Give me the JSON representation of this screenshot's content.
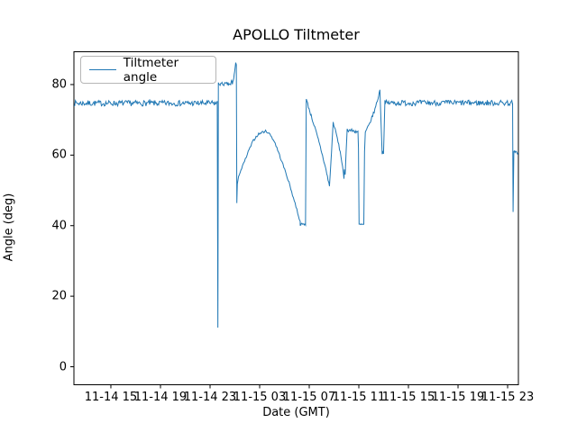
{
  "figure": {
    "background": "#ffffff"
  },
  "chart_data": {
    "type": "line",
    "title": "APOLLO Tiltmeter",
    "xlabel": "Date (GMT)",
    "ylabel": "Angle (deg)",
    "legend_label": "Tiltmeter angle",
    "legend_position": "upper left",
    "line_color": "#1f77b4",
    "grid": "off",
    "xlim_hours": [
      12.02,
      47.87
    ],
    "ylim_deg": [
      -5.1,
      89.3
    ],
    "yticks_deg": [
      0,
      20,
      40,
      60,
      80
    ],
    "xticks": [
      {
        "hour": 15,
        "label": "11-14 15"
      },
      {
        "hour": 19,
        "label": "11-14 19"
      },
      {
        "hour": 23,
        "label": "11-14 23"
      },
      {
        "hour": 27,
        "label": "11-15 03"
      },
      {
        "hour": 31,
        "label": "11-15 07"
      },
      {
        "hour": 35,
        "label": "11-15 11"
      },
      {
        "hour": 39,
        "label": "11-15 15"
      },
      {
        "hour": 43,
        "label": "11-15 19"
      },
      {
        "hour": 47,
        "label": "11-15 23"
      }
    ],
    "x_unit_note": "hours after 11-14 00:00 GMT",
    "noise_seed": 7,
    "series": [
      {
        "name": "Tiltmeter angle",
        "segments": [
          {
            "noise": 0.8,
            "dt": 0.06,
            "points": [
              [
                12.02,
                74.7
              ],
              [
                23.52,
                74.7
              ]
            ]
          },
          {
            "noise": 0,
            "dt": 0,
            "points": [
              [
                23.52,
                74.9
              ],
              [
                23.58,
                75.3
              ],
              [
                23.63,
                11.1
              ],
              [
                23.67,
                79.8
              ]
            ]
          },
          {
            "noise": 0.5,
            "dt": 0.05,
            "points": [
              [
                23.67,
                80.2
              ],
              [
                24.55,
                80.1
              ]
            ]
          },
          {
            "noise": 0.25,
            "dt": 0.04,
            "points": [
              [
                24.55,
                80.2
              ],
              [
                24.66,
                79.9
              ],
              [
                24.74,
                81.3
              ],
              [
                24.8,
                80.2
              ],
              [
                24.88,
                81.2
              ],
              [
                24.98,
                83.6
              ],
              [
                25.07,
                86.2
              ]
            ]
          },
          {
            "noise": 0,
            "dt": 0,
            "points": [
              [
                25.07,
                86.2
              ],
              [
                25.12,
                85.6
              ],
              [
                25.16,
                46.4
              ]
            ]
          },
          {
            "noise": 0.35,
            "dt": 0.07,
            "points": [
              [
                25.16,
                46.4
              ],
              [
                25.2,
                51.5
              ],
              [
                25.3,
                54.2
              ],
              [
                25.55,
                56.2
              ],
              [
                25.85,
                58.8
              ],
              [
                26.15,
                61.5
              ],
              [
                26.5,
                64.2
              ],
              [
                26.85,
                65.8
              ],
              [
                27.2,
                66.5
              ],
              [
                27.55,
                66.8
              ],
              [
                27.9,
                65.6
              ],
              [
                28.25,
                63.4
              ],
              [
                28.6,
                60.0
              ],
              [
                28.95,
                56.6
              ],
              [
                29.3,
                53.0
              ],
              [
                29.65,
                48.8
              ],
              [
                30.0,
                44.6
              ],
              [
                30.27,
                41.0
              ]
            ]
          },
          {
            "noise": 0.3,
            "dt": 0.05,
            "points": [
              [
                30.27,
                40.4
              ],
              [
                30.7,
                40.4
              ]
            ]
          },
          {
            "noise": 0,
            "dt": 0,
            "points": [
              [
                30.7,
                40.4
              ],
              [
                30.76,
                75.8
              ]
            ]
          },
          {
            "noise": 0.45,
            "dt": 0.06,
            "points": [
              [
                30.76,
                75.8
              ],
              [
                31.1,
                71.8
              ],
              [
                31.5,
                67.2
              ],
              [
                31.9,
                62.2
              ],
              [
                32.3,
                56.6
              ],
              [
                32.63,
                51.2
              ]
            ]
          },
          {
            "noise": 0.2,
            "dt": 0.05,
            "points": [
              [
                32.63,
                51.2
              ],
              [
                32.75,
                58.0
              ],
              [
                32.93,
                69.3
              ]
            ]
          },
          {
            "noise": 0.35,
            "dt": 0.06,
            "points": [
              [
                32.93,
                69.3
              ],
              [
                33.2,
                65.8
              ],
              [
                33.5,
                60.8
              ],
              [
                33.69,
                56.8
              ]
            ]
          },
          {
            "noise": 0.15,
            "dt": 0.04,
            "points": [
              [
                33.69,
                56.8
              ],
              [
                33.8,
                53.3
              ],
              [
                33.84,
                55.8
              ],
              [
                33.9,
                54.6
              ],
              [
                33.98,
                61.5
              ],
              [
                34.06,
                67.4
              ]
            ]
          },
          {
            "noise": 0.5,
            "dt": 0.05,
            "points": [
              [
                34.06,
                67.2
              ],
              [
                34.93,
                66.6
              ]
            ]
          },
          {
            "noise": 0,
            "dt": 0,
            "points": [
              [
                34.93,
                66.6
              ],
              [
                34.97,
                62.0
              ],
              [
                35.02,
                40.3
              ]
            ]
          },
          {
            "noise": 0.3,
            "dt": 0.05,
            "points": [
              [
                35.02,
                40.3
              ],
              [
                35.4,
                40.3
              ]
            ]
          },
          {
            "noise": 0,
            "dt": 0,
            "points": [
              [
                35.4,
                40.3
              ],
              [
                35.46,
                61.0
              ],
              [
                35.52,
                66.3
              ]
            ]
          },
          {
            "noise": 0.45,
            "dt": 0.06,
            "points": [
              [
                35.52,
                66.3
              ],
              [
                35.8,
                68.4
              ],
              [
                36.05,
                70.6
              ],
              [
                36.3,
                73.0
              ],
              [
                36.55,
                76.2
              ],
              [
                36.7,
                78.4
              ]
            ]
          },
          {
            "noise": 0.15,
            "dt": 0.04,
            "points": [
              [
                36.7,
                78.4
              ],
              [
                36.88,
                60.4
              ],
              [
                36.93,
                61.0
              ],
              [
                36.99,
                60.3
              ],
              [
                37.1,
                75.0
              ]
            ]
          },
          {
            "noise": 0.8,
            "dt": 0.06,
            "points": [
              [
                37.1,
                74.8
              ],
              [
                47.4,
                74.8
              ]
            ]
          },
          {
            "noise": 0,
            "dt": 0,
            "points": [
              [
                47.4,
                74.8
              ],
              [
                47.44,
                43.9
              ],
              [
                47.5,
                60.6
              ]
            ]
          },
          {
            "noise": 0.45,
            "dt": 0.05,
            "points": [
              [
                47.5,
                60.8
              ],
              [
                47.85,
                60.7
              ]
            ]
          }
        ]
      }
    ]
  }
}
